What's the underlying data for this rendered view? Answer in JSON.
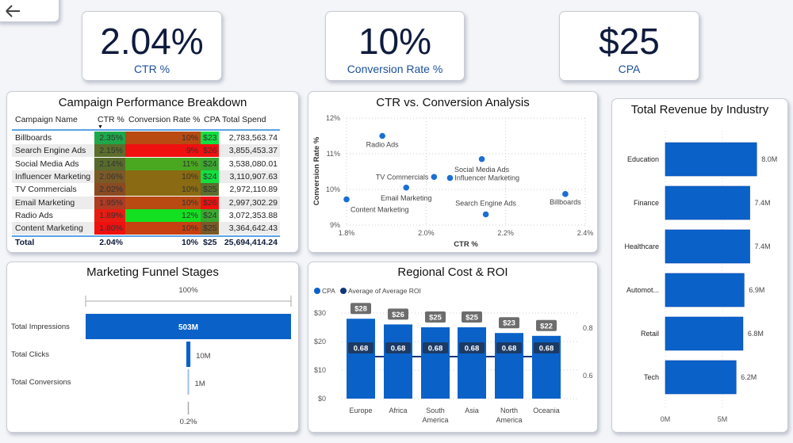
{
  "nav": {
    "back_icon": "arrow-left-icon"
  },
  "kpis": [
    {
      "value": "2.04%",
      "label": "CTR %"
    },
    {
      "value": "10%",
      "label": "Conversion Rate %"
    },
    {
      "value": "$25",
      "label": "CPA"
    }
  ],
  "table": {
    "title": "Campaign Performance Breakdown",
    "columns": [
      "Campaign Name",
      "CTR %",
      "Conversion Rate %",
      "CPA",
      "Total Spend"
    ],
    "sort_column": "CTR %",
    "sort_direction": "descending",
    "rows": [
      {
        "name": "Billboards",
        "ctr": "2.35%",
        "conv": "10%",
        "cpa": "$23",
        "spend": "2,783,563.74",
        "ctr_color": "#1ea84a",
        "conv_color": "#b84a12",
        "cpa_color": "#12e040"
      },
      {
        "name": "Search Engine Ads",
        "ctr": "2.15%",
        "conv": "9%",
        "cpa": "$26",
        "spend": "3,855,453.37",
        "ctr_color": "#5c6e2c",
        "conv_color": "#f01010",
        "cpa_color": "#f01010"
      },
      {
        "name": "Social Media Ads",
        "ctr": "2.14%",
        "conv": "11%",
        "cpa": "$24",
        "spend": "3,538,080.01",
        "ctr_color": "#586b2c",
        "conv_color": "#4aa820",
        "cpa_color": "#3aa830"
      },
      {
        "name": "Influencer Marketing",
        "ctr": "2.06%",
        "conv": "10%",
        "cpa": "$24",
        "spend": "3,110,907.63",
        "ctr_color": "#7a5a25",
        "conv_color": "#8a6a12",
        "cpa_color": "#12e040"
      },
      {
        "name": "TV Commercials",
        "ctr": "2.02%",
        "conv": "10%",
        "cpa": "$25",
        "spend": "2,972,110.89",
        "ctr_color": "#8a4a22",
        "conv_color": "#8a6a12",
        "cpa_color": "#5c6e2c"
      },
      {
        "name": "Email Marketing",
        "ctr": "1.95%",
        "conv": "10%",
        "cpa": "$26",
        "spend": "2,997,302.29",
        "ctr_color": "#b03a22",
        "conv_color": "#b84a12",
        "cpa_color": "#f01010"
      },
      {
        "name": "Radio Ads",
        "ctr": "1.89%",
        "conv": "12%",
        "cpa": "$24",
        "spend": "3,072,353.88",
        "ctr_color": "#e81c12",
        "conv_color": "#12e020",
        "cpa_color": "#3aa830"
      },
      {
        "name": "Content Marketing",
        "ctr": "1.80%",
        "conv": "10%",
        "cpa": "$25",
        "spend": "3,364,642.43",
        "ctr_color": "#f01010",
        "conv_color": "#c8400f",
        "cpa_color": "#7a5a25"
      }
    ],
    "total": {
      "name": "Total",
      "ctr": "2.04%",
      "conv": "10%",
      "cpa": "$25",
      "spend": "25,694,414.24"
    }
  },
  "chart_data": [
    {
      "type": "scatter",
      "title": "CTR vs. Conversion Analysis",
      "xlabel": "CTR %",
      "ylabel": "Conversion Rate %",
      "xlim": [
        1.8,
        2.4
      ],
      "ylim": [
        9,
        12
      ],
      "xticks": [
        "1.8%",
        "2.0%",
        "2.2%",
        "2.4%"
      ],
      "yticks": [
        "9%",
        "10%",
        "11%",
        "12%"
      ],
      "grid": true,
      "color": "#1a6fd6",
      "points": [
        {
          "label": "Radio Ads",
          "x": 1.89,
          "y": 11.5
        },
        {
          "label": "Social Media Ads",
          "x": 2.14,
          "y": 10.85
        },
        {
          "label": "TV Commercials",
          "x": 2.02,
          "y": 10.35
        },
        {
          "label": "Influencer Marketing",
          "x": 2.06,
          "y": 10.32
        },
        {
          "label": "Email Marketing",
          "x": 1.95,
          "y": 10.05
        },
        {
          "label": "Content Marketing",
          "x": 1.8,
          "y": 9.72
        },
        {
          "label": "Billboards",
          "x": 2.35,
          "y": 9.87
        },
        {
          "label": "Search Engine Ads",
          "x": 2.15,
          "y": 9.3
        }
      ]
    },
    {
      "type": "bar",
      "title": "Marketing Funnel Stages",
      "categories": [
        "Total Impressions",
        "Total Clicks",
        "Total Conversions"
      ],
      "values": [
        503,
        10,
        1
      ],
      "data_labels": [
        "503M",
        "10M",
        "1M"
      ],
      "top_label": "100%",
      "bottom_label": "0.2%",
      "colors": [
        "#0a62c9",
        "#0a62c9",
        "#9cc3ee"
      ]
    },
    {
      "type": "bar",
      "title": "Regional Cost & ROI",
      "legend": [
        "CPA",
        "Average of Average ROI"
      ],
      "legend_position": "top-left",
      "categories": [
        "Europe",
        "Africa",
        "South America",
        "Asia",
        "North America",
        "Oceania"
      ],
      "series": [
        {
          "name": "CPA",
          "type": "bar",
          "values": [
            28,
            26,
            25,
            25,
            23,
            22
          ],
          "labels": [
            "$28",
            "$26",
            "$25",
            "$25",
            "$23",
            "$22"
          ],
          "color": "#0a62c9"
        },
        {
          "name": "Average of Average ROI",
          "type": "line",
          "values": [
            0.68,
            0.68,
            0.68,
            0.68,
            0.68,
            0.68
          ],
          "labels": [
            "0.68",
            "0.68",
            "0.68",
            "0.68",
            "0.68",
            "0.68"
          ],
          "color": "#12357a"
        }
      ],
      "yticks": [
        "$0",
        "$10",
        "$20",
        "$30"
      ],
      "ylim": [
        0,
        30
      ],
      "y2ticks": [
        "0.6",
        "0.8"
      ],
      "y2lim": [
        0.6,
        0.8
      ],
      "grid": true
    },
    {
      "type": "bar",
      "orientation": "horizontal",
      "title": "Total Revenue by Industry",
      "categories": [
        "Education",
        "Finance",
        "Healthcare",
        "Automot...",
        "Retail",
        "Tech"
      ],
      "values": [
        8.0,
        7.4,
        7.4,
        6.9,
        6.8,
        6.2
      ],
      "data_labels": [
        "8.0M",
        "7.4M",
        "7.4M",
        "6.9M",
        "6.8M",
        "6.2M"
      ],
      "xticks": [
        "0M",
        "5M"
      ],
      "xunit": "M",
      "color": "#0a62c9"
    }
  ]
}
